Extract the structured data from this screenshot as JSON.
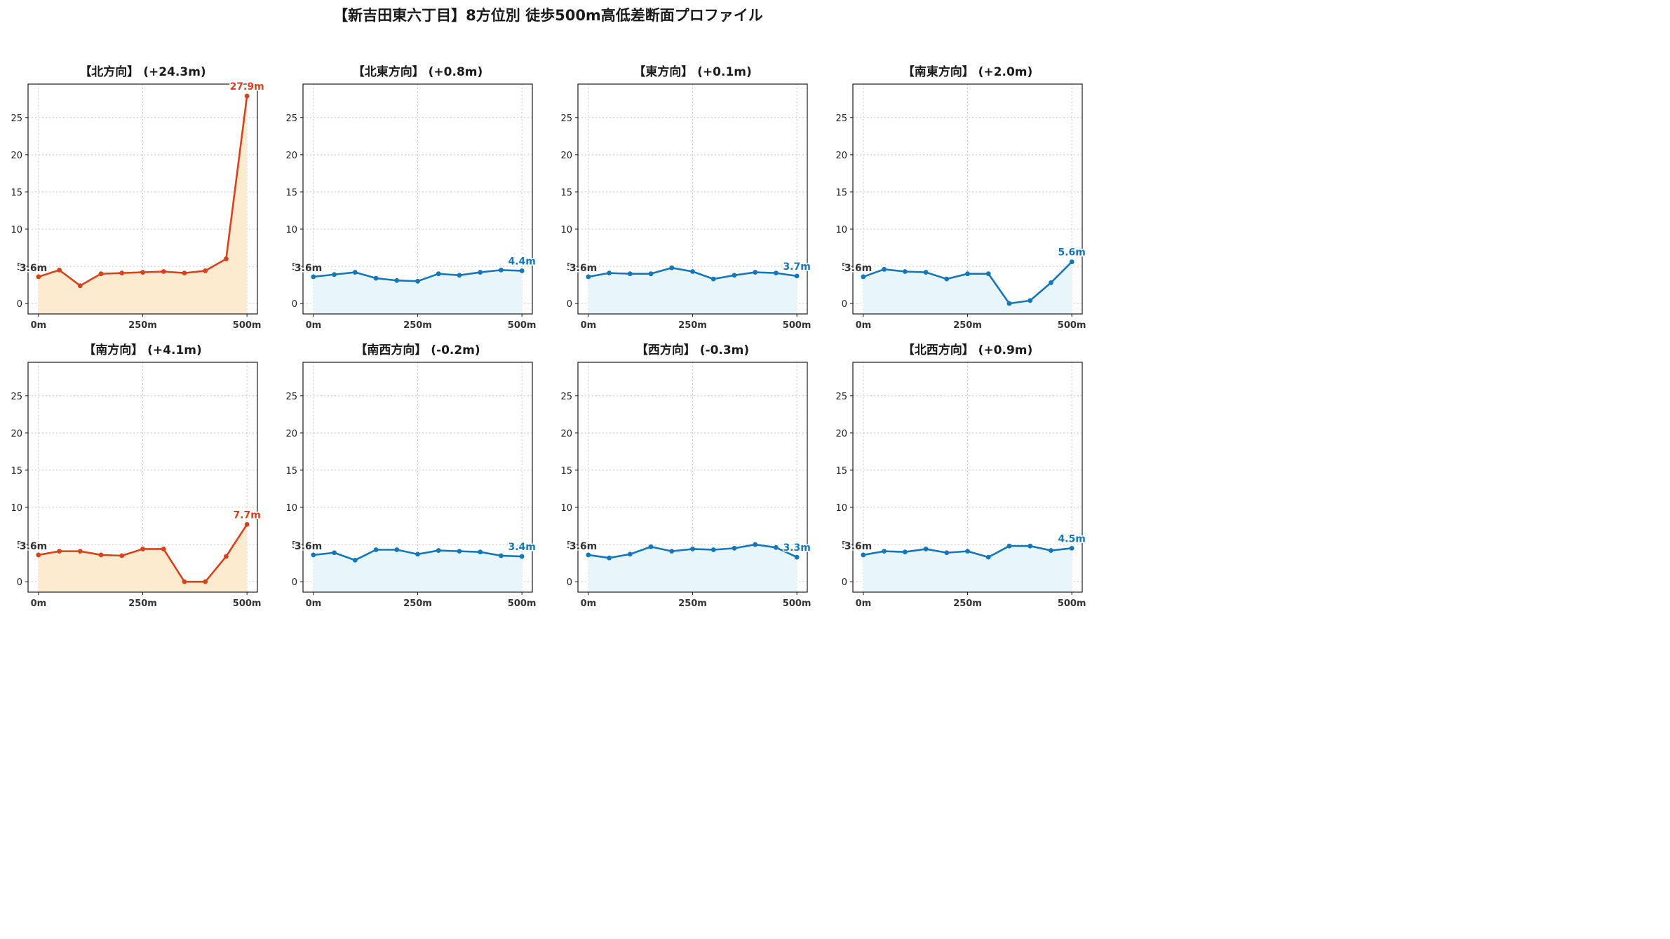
{
  "title": "【新吉田東六丁目】8方位別 徒歩500m高低差断面プロファイル",
  "colors": {
    "up_line": "#d7421a",
    "up_fill": "#fdebcf",
    "flat_line": "#1576b8",
    "flat_fill": "#e8f6fb",
    "start_label": "#333333",
    "grid": "#c8c8c8"
  },
  "chart_data": [
    {
      "type": "area",
      "title": "【北方向】 (+24.3m)",
      "style": "up",
      "x": [
        0,
        50,
        100,
        150,
        200,
        250,
        300,
        350,
        400,
        450,
        500
      ],
      "y": [
        3.6,
        4.5,
        2.4,
        4.0,
        4.1,
        4.2,
        4.3,
        4.1,
        4.4,
        6.0,
        27.9
      ],
      "start_label": "3.6m",
      "end_label": "27.9m",
      "xticks": [
        "0m",
        "250m",
        "500m"
      ],
      "yticks": [
        0,
        5,
        10,
        15,
        20,
        25
      ],
      "ylim": [
        -1.4,
        29.5
      ],
      "xlim": [
        -25,
        525
      ],
      "grid": true
    },
    {
      "type": "area",
      "title": "【北東方向】 (+0.8m)",
      "style": "flat",
      "x": [
        0,
        50,
        100,
        150,
        200,
        250,
        300,
        350,
        400,
        450,
        500
      ],
      "y": [
        3.6,
        3.9,
        4.2,
        3.4,
        3.1,
        3.0,
        4.0,
        3.8,
        4.2,
        4.5,
        4.4
      ],
      "start_label": "3.6m",
      "end_label": "4.4m",
      "xticks": [
        "0m",
        "250m",
        "500m"
      ],
      "yticks": [
        0,
        5,
        10,
        15,
        20,
        25
      ],
      "ylim": [
        -1.4,
        29.5
      ],
      "xlim": [
        -25,
        525
      ],
      "grid": true
    },
    {
      "type": "area",
      "title": "【東方向】 (+0.1m)",
      "style": "flat",
      "x": [
        0,
        50,
        100,
        150,
        200,
        250,
        300,
        350,
        400,
        450,
        500
      ],
      "y": [
        3.6,
        4.1,
        4.0,
        4.0,
        4.8,
        4.3,
        3.3,
        3.8,
        4.2,
        4.1,
        3.7
      ],
      "start_label": "3.6m",
      "end_label": "3.7m",
      "xticks": [
        "0m",
        "250m",
        "500m"
      ],
      "yticks": [
        0,
        5,
        10,
        15,
        20,
        25
      ],
      "ylim": [
        -1.4,
        29.5
      ],
      "xlim": [
        -25,
        525
      ],
      "grid": true
    },
    {
      "type": "area",
      "title": "【南東方向】 (+2.0m)",
      "style": "flat",
      "x": [
        0,
        50,
        100,
        150,
        200,
        250,
        300,
        350,
        400,
        450,
        500
      ],
      "y": [
        3.6,
        4.6,
        4.3,
        4.2,
        3.3,
        4.0,
        4.0,
        0.0,
        0.4,
        2.8,
        5.6
      ],
      "start_label": "3.6m",
      "end_label": "5.6m",
      "xticks": [
        "0m",
        "250m",
        "500m"
      ],
      "yticks": [
        0,
        5,
        10,
        15,
        20,
        25
      ],
      "ylim": [
        -1.4,
        29.5
      ],
      "xlim": [
        -25,
        525
      ],
      "grid": true
    },
    {
      "type": "area",
      "title": "【南方向】 (+4.1m)",
      "style": "up",
      "x": [
        0,
        50,
        100,
        150,
        200,
        250,
        300,
        350,
        400,
        450,
        500
      ],
      "y": [
        3.6,
        4.1,
        4.1,
        3.6,
        3.5,
        4.4,
        4.4,
        0.0,
        0.0,
        3.4,
        7.7
      ],
      "start_label": "3.6m",
      "end_label": "7.7m",
      "xticks": [
        "0m",
        "250m",
        "500m"
      ],
      "yticks": [
        0,
        5,
        10,
        15,
        20,
        25
      ],
      "ylim": [
        -1.4,
        29.5
      ],
      "xlim": [
        -25,
        525
      ],
      "grid": true
    },
    {
      "type": "area",
      "title": "【南西方向】 (-0.2m)",
      "style": "flat",
      "x": [
        0,
        50,
        100,
        150,
        200,
        250,
        300,
        350,
        400,
        450,
        500
      ],
      "y": [
        3.6,
        3.9,
        2.9,
        4.3,
        4.3,
        3.7,
        4.2,
        4.1,
        4.0,
        3.5,
        3.4
      ],
      "start_label": "3.6m",
      "end_label": "3.4m",
      "xticks": [
        "0m",
        "250m",
        "500m"
      ],
      "yticks": [
        0,
        5,
        10,
        15,
        20,
        25
      ],
      "ylim": [
        -1.4,
        29.5
      ],
      "xlim": [
        -25,
        525
      ],
      "grid": true
    },
    {
      "type": "area",
      "title": "【西方向】 (-0.3m)",
      "style": "flat",
      "x": [
        0,
        50,
        100,
        150,
        200,
        250,
        300,
        350,
        400,
        450,
        500
      ],
      "y": [
        3.6,
        3.2,
        3.7,
        4.7,
        4.1,
        4.4,
        4.3,
        4.5,
        5.0,
        4.6,
        3.3
      ],
      "start_label": "3.6m",
      "end_label": "3.3m",
      "xticks": [
        "0m",
        "250m",
        "500m"
      ],
      "yticks": [
        0,
        5,
        10,
        15,
        20,
        25
      ],
      "ylim": [
        -1.4,
        29.5
      ],
      "xlim": [
        -25,
        525
      ],
      "grid": true
    },
    {
      "type": "area",
      "title": "【北西方向】 (+0.9m)",
      "style": "flat",
      "x": [
        0,
        50,
        100,
        150,
        200,
        250,
        300,
        350,
        400,
        450,
        500
      ],
      "y": [
        3.6,
        4.1,
        4.0,
        4.4,
        3.9,
        4.1,
        3.3,
        4.8,
        4.8,
        4.2,
        4.5
      ],
      "start_label": "3.6m",
      "end_label": "4.5m",
      "xticks": [
        "0m",
        "250m",
        "500m"
      ],
      "yticks": [
        0,
        5,
        10,
        15,
        20,
        25
      ],
      "ylim": [
        -1.4,
        29.5
      ],
      "xlim": [
        -25,
        525
      ],
      "grid": true
    }
  ]
}
